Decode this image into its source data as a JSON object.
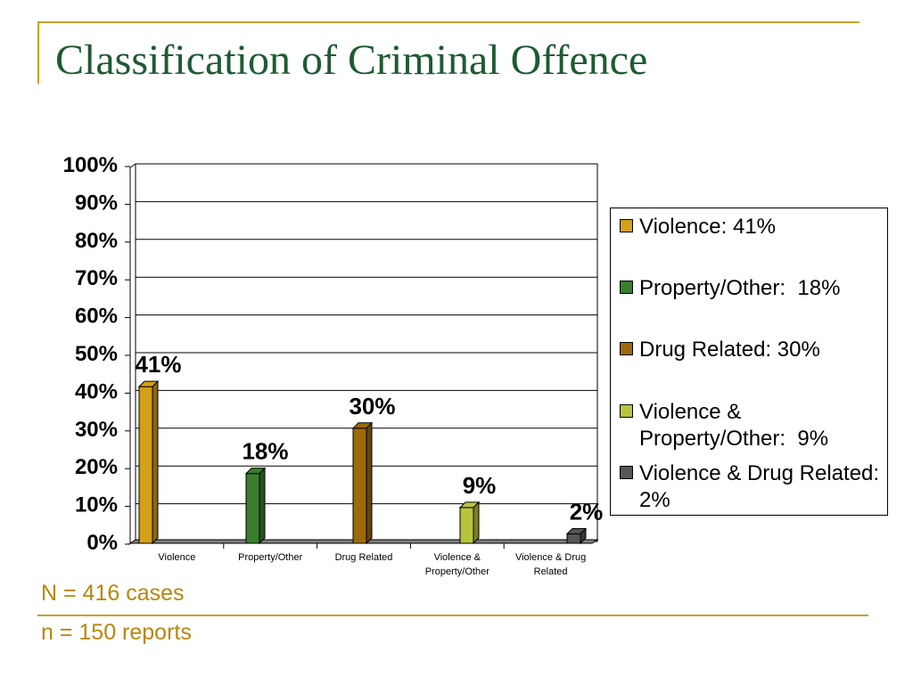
{
  "slide": {
    "title": "Classification of Criminal Offence",
    "notes": [
      "N = 416 cases",
      "n = 150 reports"
    ]
  },
  "colors": {
    "accent": "#c8a02a",
    "title": "#1f5a32",
    "footnote": "#b8860b"
  },
  "chart_data": {
    "type": "bar",
    "categories": [
      "Violence",
      "Property/Other",
      "Drug Related",
      "Violence & Property/Other",
      "Violence & Drug Related"
    ],
    "values": [
      41,
      18,
      30,
      9,
      2
    ],
    "data_labels": [
      "41%",
      "18%",
      "30%",
      "9%",
      "2%"
    ],
    "colors": [
      "#d4a017",
      "#3a7d2e",
      "#9c6a0a",
      "#b9c43c",
      "#555555"
    ],
    "ylim": [
      0,
      100
    ],
    "yticks": [
      "0%",
      "10%",
      "20%",
      "30%",
      "40%",
      "50%",
      "60%",
      "70%",
      "80%",
      "90%",
      "100%"
    ],
    "grid": true,
    "legend_position": "right",
    "legend": [
      "Violence: 41%",
      "Property/Other:  18%",
      "Drug Related: 30%",
      "Violence & Property/Other:  9%",
      "Violence & Drug Related: 2%"
    ]
  }
}
